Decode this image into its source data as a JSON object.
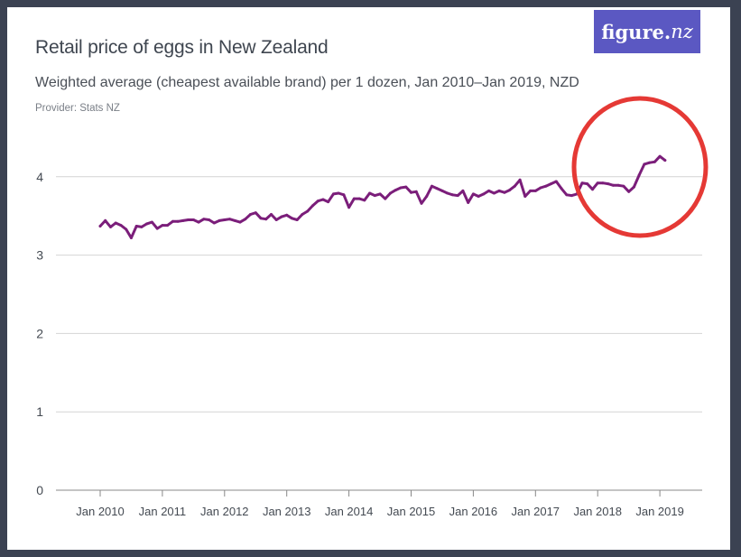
{
  "header": {
    "title": "Retail price of eggs in New Zealand",
    "subtitle": "Weighted average (cheapest available brand) per 1 dozen, Jan 2010–Jan 2019, NZD",
    "provider": "Provider: Stats NZ",
    "logo_text_main": "figure.",
    "logo_text_nz": "nz"
  },
  "colors": {
    "line": "#7b1e7a",
    "highlight": "#e53935",
    "grid": "#d4d4d4",
    "axis": "#888888",
    "logo_bg": "#5b58c2"
  },
  "annotation": {
    "shape": "circle",
    "color": "#e53935",
    "marks": "late-2018 price rise"
  },
  "chart_data": {
    "type": "line",
    "title": "Retail price of eggs in New Zealand",
    "xlabel": "",
    "ylabel": "",
    "x_tick_labels": [
      "Jan 2010",
      "Jan 2011",
      "Jan 2012",
      "Jan 2013",
      "Jan 2014",
      "Jan 2015",
      "Jan 2016",
      "Jan 2017",
      "Jan 2018",
      "Jan 2019"
    ],
    "y_ticks": [
      0,
      1,
      2,
      3,
      4
    ],
    "ylim": [
      0,
      4.55
    ],
    "xlim": [
      "Jul 2009",
      "Jul 2019"
    ],
    "grid": "horizontal",
    "series": [
      {
        "values": [
          3.37,
          3.44,
          3.36,
          3.41,
          3.38,
          3.33,
          3.22,
          3.37,
          3.36,
          3.4,
          3.42,
          3.34,
          3.38,
          3.38,
          3.43,
          3.43,
          3.44,
          3.45,
          3.45,
          3.42,
          3.46,
          3.45,
          3.41,
          3.44,
          3.45,
          3.46,
          3.44,
          3.42,
          3.46,
          3.52,
          3.54,
          3.47,
          3.46,
          3.52,
          3.45,
          3.49,
          3.51,
          3.47,
          3.45,
          3.52,
          3.56,
          3.63,
          3.69,
          3.71,
          3.68,
          3.78,
          3.79,
          3.77,
          3.61,
          3.72,
          3.72,
          3.7,
          3.79,
          3.76,
          3.78,
          3.72,
          3.79,
          3.83,
          3.86,
          3.87,
          3.8,
          3.81,
          3.66,
          3.75,
          3.88,
          3.85,
          3.82,
          3.79,
          3.77,
          3.76,
          3.82,
          3.67,
          3.78,
          3.75,
          3.78,
          3.82,
          3.79,
          3.82,
          3.8,
          3.83,
          3.88,
          3.96,
          3.75,
          3.82,
          3.82,
          3.86,
          3.88,
          3.91,
          3.94,
          3.85,
          3.77,
          3.76,
          3.78,
          3.92,
          3.91,
          3.84,
          3.92,
          3.92,
          3.91,
          3.89,
          3.89,
          3.88,
          3.81,
          3.87,
          4.02,
          4.16,
          4.18,
          4.19,
          4.26,
          4.21
        ],
        "start": "Jan 2010",
        "frequency": "monthly"
      }
    ]
  }
}
